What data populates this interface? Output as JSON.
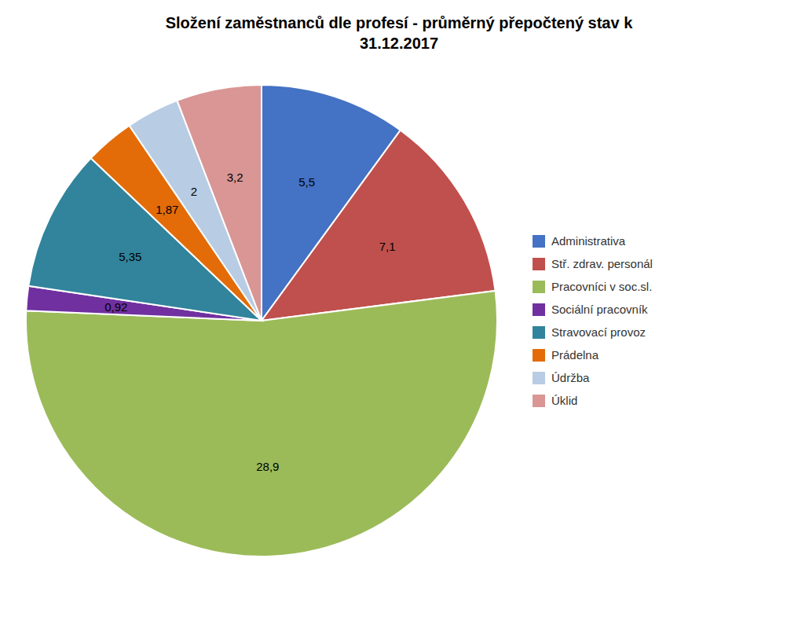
{
  "chart_data": {
    "type": "pie",
    "title": "Složení zaměstnanců dle profesí - průměrný přepočtený stav k\n31.12.2017",
    "categories": [
      "Administrativa",
      "Stř. zdrav. personál",
      "Pracovníci v soc.sl.",
      "Sociální pracovník",
      "Stravovací provoz",
      "Prádelna",
      "Údržba",
      "Úklid"
    ],
    "values": [
      5.5,
      7.1,
      28.9,
      0.92,
      5.35,
      1.87,
      2.0,
      3.2
    ],
    "value_labels": [
      "5,5",
      "7,1",
      "28,9",
      "0,92",
      "5,35",
      "1,87",
      "2",
      "3,2"
    ],
    "colors": [
      "#4472C4",
      "#C0504D",
      "#9BBB59",
      "#7030A0",
      "#31849B",
      "#E36C09",
      "#B8CCE4",
      "#D99694"
    ],
    "data_labels": true,
    "legend": "right"
  }
}
